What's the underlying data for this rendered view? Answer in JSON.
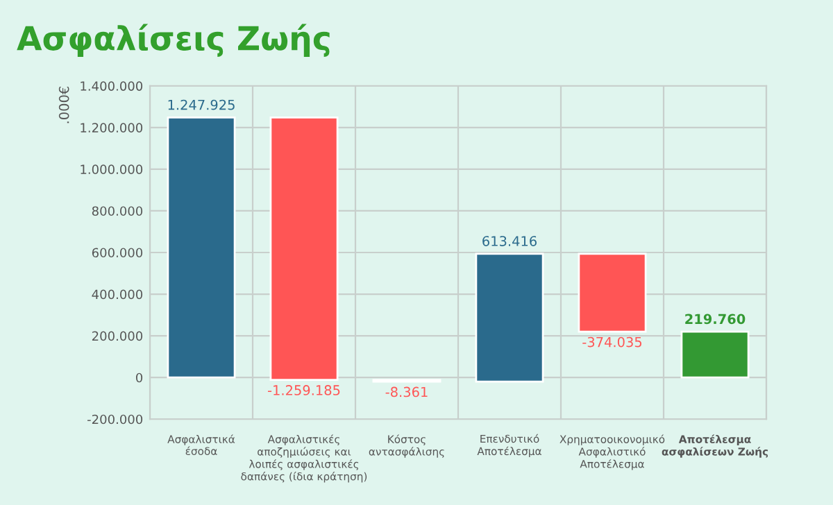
{
  "chart_data": {
    "type": "bar",
    "title": "Ασφαλίσεις Ζωής",
    "ylabel": ".000€",
    "categories": [
      "Ασφαλιστικά\nέσοδα",
      "Ασφαλιστικές\nαποζημιώσεις και\nλοιπές ασφαλιστικές\nδαπάνες (ίδια κράτηση)",
      "Κόστος\nαντασφάλισης",
      "Επενδυτικό\nΑποτέλεσμα",
      "Χρηματοοικονομικό\nΑσφαλιστικό\nΑποτέλεσμα",
      "Αποτέλεσμα\nασφαλίσεων Ζωής"
    ],
    "values": [
      1247925,
      -1259185,
      -8361,
      613416,
      -374035,
      219760
    ],
    "base": [
      0,
      1247925,
      -11260,
      -19621,
      593795,
      0
    ],
    "colors": [
      "#2a6a8c",
      "#ff5555",
      "#ff5555",
      "#2a6a8c",
      "#ff5555",
      "#339933"
    ],
    "value_labels": [
      "1.247.925",
      "-1.259.185",
      "-8.361",
      "613.416",
      "-374.035",
      "219.760"
    ],
    "ylim": [
      -200000,
      1400000
    ],
    "yticks": [
      {
        "value": -200000,
        "label": "-200.000"
      },
      0,
      {
        "value": 200000,
        "label": "200.000"
      },
      {
        "value": 400000,
        "label": "400.000"
      },
      {
        "value": 600000,
        "label": "600.000"
      },
      {
        "value": 800000,
        "label": "800.000"
      },
      {
        "value": 1000000,
        "label": "1.000.000"
      },
      {
        "value": 1200000,
        "label": "1.200.000"
      },
      {
        "value": 1400000,
        "label": "1.400.000"
      }
    ],
    "grid": true,
    "legend": false
  }
}
